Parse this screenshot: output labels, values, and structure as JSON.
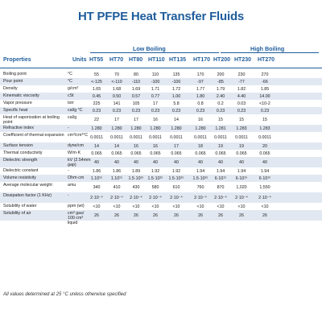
{
  "title": "HT PFPE Heat Transfer Fluids",
  "groups": {
    "low": "Low Boiling",
    "high": "High Boiling"
  },
  "headers": {
    "properties": "Properties",
    "units": "Units",
    "grades": [
      "HT55",
      "HT70",
      "HT80",
      "HT110",
      "HT135",
      "HT170",
      "HT200",
      "HT230",
      "HT270"
    ]
  },
  "rows": [
    {
      "prop": "Boiling point",
      "unit": "°C",
      "vals": [
        "55",
        "70",
        "80",
        "110",
        "135",
        "170",
        "200",
        "230",
        "270"
      ]
    },
    {
      "prop": "Pour point",
      "unit": "°C",
      "vals": [
        "<-125",
        "<-110",
        "-110",
        "-100",
        "-100",
        "-97",
        "-85",
        "-77",
        "-66"
      ]
    },
    {
      "prop": "Density",
      "unit": "g/cm³",
      "vals": [
        "1.65",
        "1.68",
        "1.69",
        "1.71",
        "1.72",
        "1.77",
        "1.79",
        "1.82",
        "1.85"
      ]
    },
    {
      "prop": "Kinematic viscosity",
      "unit": "cSt",
      "vals": [
        "0.45",
        "0.50",
        "0.57",
        "0.77",
        "1.00",
        "1.80",
        "2.40",
        "4.40",
        "14.00"
      ]
    },
    {
      "prop": "Vapor pressure",
      "unit": "torr",
      "vals": [
        "225",
        "141",
        "105",
        "17",
        "5.8",
        "0.8",
        "0.2",
        "0.03",
        "<10-2"
      ]
    },
    {
      "prop": "Specific heat",
      "unit": "cal/g °C",
      "vals": [
        "0.23",
        "0.23",
        "0.23",
        "0.23",
        "0.23",
        "0.23",
        "0.23",
        "0.23",
        "0.23"
      ]
    },
    {
      "prop": "Heat of vaporization at boiling point",
      "unit": "cal/g",
      "vals": [
        "22",
        "17",
        "17",
        "16",
        "14",
        "16",
        "15",
        "15",
        "15"
      ]
    },
    {
      "prop": "Refractive index",
      "unit": "-",
      "vals": [
        "1.280",
        "1.280",
        "1.280",
        "1.280",
        "1.280",
        "1.280",
        "1.281",
        "1.283",
        "1.283"
      ]
    },
    {
      "prop": "Coefficient of thermal expansion",
      "unit": "cm³/cm³°C",
      "vals": [
        "0.0011",
        "0.0011",
        "0.0011",
        "0.0011",
        "0.0011",
        "0.0011",
        "0.0011",
        "0.0011",
        "0.0011"
      ]
    },
    {
      "prop": "Surface tension",
      "unit": "dyne/cm",
      "vals": [
        "14",
        "14",
        "16",
        "16",
        "17",
        "18",
        "19",
        "19",
        "20"
      ]
    },
    {
      "prop": "Thermal conductivity",
      "unit": "W/m·K",
      "vals": [
        "0.065",
        "0.065",
        "0.065",
        "0.065",
        "0.065",
        "0.065",
        "0.065",
        "0.065",
        "0.065"
      ]
    },
    {
      "prop": "Dielectric strength",
      "unit": "kV (2.54mm gap)",
      "vals": [
        "40",
        "40",
        "40",
        "40",
        "40",
        "40",
        "40",
        "40",
        "40"
      ]
    },
    {
      "prop": "Dielectric constant",
      "unit": "-",
      "vals": [
        "1.86",
        "1.86",
        "1.89",
        "1.92",
        "1.92",
        "1.94",
        "1.94",
        "1.94",
        "1.94"
      ]
    },
    {
      "prop": "Volume resistivity",
      "unit": "Ohm·cm",
      "vals": [
        "1.10¹⁵",
        "1.10¹⁵",
        "1.5·10¹⁵",
        "1.5·10¹⁵",
        "1.5·10¹⁵",
        "1.5·10¹⁵",
        "6·10¹⁵",
        "6·10¹⁵",
        "6·10¹⁵"
      ]
    },
    {
      "prop": "Average molecular weight",
      "unit": "amu",
      "vals": [
        "340",
        "410",
        "430",
        "580",
        "610",
        "760",
        "870",
        "1,020",
        "1,550"
      ]
    },
    {
      "prop": "Dissipation factor (1 KHz)",
      "unit": "-",
      "vals": [
        "2·10⁻⁴",
        "2·10⁻⁴",
        "2·10⁻⁴",
        "2·10⁻⁴",
        "2·10⁻⁴",
        "2·10⁻⁴",
        "2·10⁻⁴",
        "2·10⁻⁴",
        "2·10⁻⁴"
      ]
    },
    {
      "prop": "Solubility of water",
      "unit": "ppm (wt)",
      "vals": [
        "<10",
        "<10",
        "<10",
        "<10",
        "<10",
        "<10",
        "<10",
        "<10",
        "<10"
      ]
    },
    {
      "prop": "Solubility of air",
      "unit": "cm³ gas/ 100 cm³ liquid",
      "vals": [
        "26",
        "26",
        "26",
        "26",
        "26",
        "26",
        "26",
        "26",
        "26"
      ]
    }
  ],
  "footer": "All values determined at 25 °C unless otherwise specified"
}
